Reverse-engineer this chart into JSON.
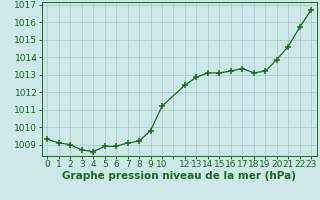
{
  "x": [
    0,
    1,
    2,
    3,
    4,
    5,
    6,
    7,
    8,
    9,
    10,
    12,
    13,
    14,
    15,
    16,
    17,
    18,
    19,
    20,
    21,
    22,
    23
  ],
  "y": [
    1009.3,
    1009.1,
    1009.0,
    1008.7,
    1008.6,
    1008.9,
    1008.9,
    1009.1,
    1009.2,
    1009.8,
    1011.2,
    1012.4,
    1012.85,
    1013.1,
    1013.1,
    1013.2,
    1013.35,
    1013.1,
    1013.2,
    1013.85,
    1014.6,
    1015.7,
    1016.7
  ],
  "xlim": [
    -0.5,
    23.5
  ],
  "ylim": [
    1008.35,
    1017.15
  ],
  "yticks": [
    1009,
    1010,
    1011,
    1012,
    1013,
    1014,
    1015,
    1016,
    1017
  ],
  "xtick_positions": [
    0,
    1,
    2,
    3,
    4,
    5,
    6,
    7,
    8,
    9,
    10,
    11,
    12,
    13,
    14,
    15,
    16,
    17,
    18,
    19,
    20,
    21,
    22,
    23
  ],
  "xtick_labels": [
    "0",
    "1",
    "2",
    "3",
    "4",
    "5",
    "6",
    "7",
    "8",
    "9",
    "10",
    "",
    "12",
    "13",
    "14",
    "15",
    "16",
    "17",
    "18",
    "19",
    "20",
    "21",
    "22",
    "23"
  ],
  "line_color": "#1a6e1a",
  "marker_color": "#1a6e1a",
  "bg_color": "#cce8e8",
  "grid_color": "#aacece",
  "xlabel": "Graphe pression niveau de la mer (hPa)",
  "xlabel_color": "#1a6e1a",
  "tick_color": "#1a6e1a",
  "tick_fontsize": 6.5,
  "xlabel_fontsize": 7.5
}
